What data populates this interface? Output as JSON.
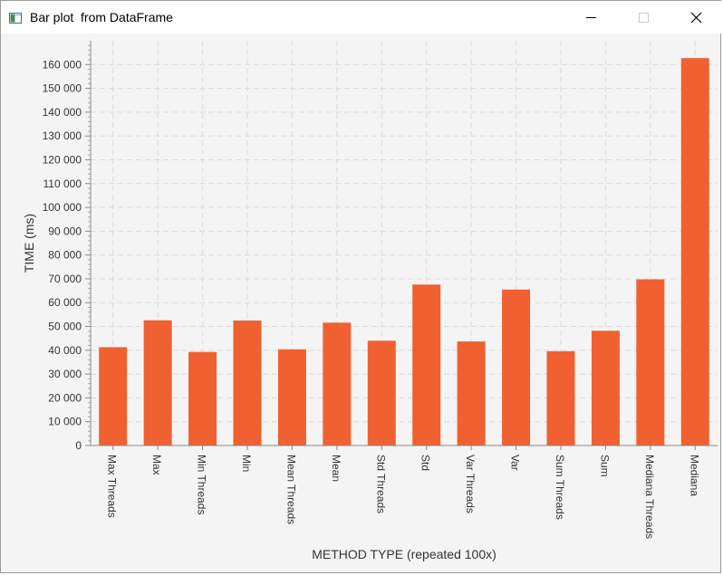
{
  "window": {
    "title": "Bar plot  from DataFrame",
    "icon": "java-window-icon",
    "controls": [
      "minimize-icon",
      "maximize-icon",
      "close-icon"
    ]
  },
  "chart_data": {
    "type": "bar",
    "xlabel": "METHOD TYPE (repeated 100x)",
    "ylabel": "TIME (ms)",
    "categories": [
      "Max Threads",
      "Max",
      "Min Threads",
      "Min",
      "Mean Threads",
      "Mean",
      "Std Threads",
      "Std",
      "Var Threads",
      "Var",
      "Sum Threads",
      "Sum",
      "Mediana Threads",
      "Mediana"
    ],
    "values": [
      41300,
      52600,
      39300,
      52500,
      40400,
      51600,
      44000,
      67600,
      43700,
      65500,
      39600,
      48200,
      69800,
      162700
    ],
    "ylim": [
      0,
      170000
    ],
    "yticks": [
      0,
      10000,
      20000,
      30000,
      40000,
      50000,
      60000,
      70000,
      80000,
      90000,
      100000,
      110000,
      120000,
      130000,
      140000,
      150000,
      160000
    ],
    "ytick_labels": [
      "0",
      "10 000",
      "20 000",
      "30 000",
      "40 000",
      "50 000",
      "60 000",
      "70 000",
      "80 000",
      "90 000",
      "100 000",
      "110 000",
      "120 000",
      "130 000",
      "140 000",
      "150 000",
      "160 000"
    ],
    "bar_color": "#f06030",
    "grid": true,
    "legend": "none"
  }
}
